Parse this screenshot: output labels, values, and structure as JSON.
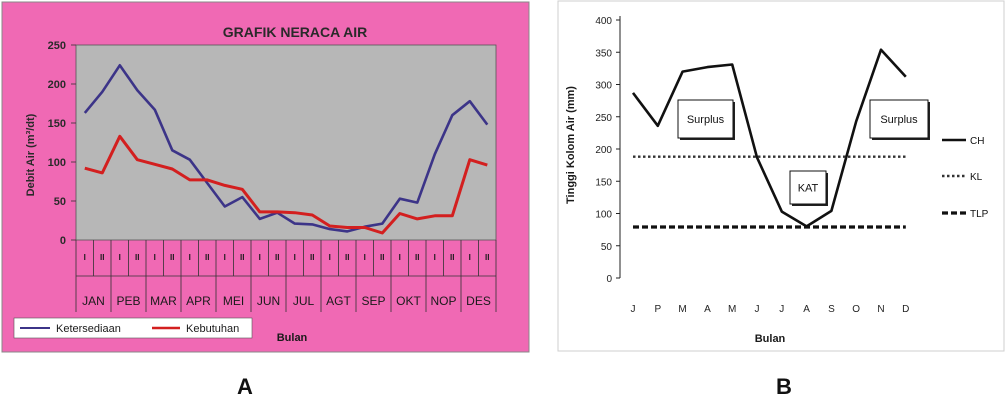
{
  "chart_data": [
    {
      "panel_label": "A",
      "type": "line",
      "title": "GRAFIK NERACA AIR",
      "ylabel": "Debit Air (m³/dt)",
      "xlabel": "Bulan",
      "ylim": [
        0,
        250
      ],
      "yticks": [
        0,
        50,
        100,
        150,
        200,
        250
      ],
      "months": [
        "JAN",
        "PEB",
        "MAR",
        "APR",
        "MEI",
        "JUN",
        "JUL",
        "AGT",
        "SEP",
        "OKT",
        "NOP",
        "DES"
      ],
      "periods": [
        "I",
        "II",
        "I",
        "II",
        "I",
        "II",
        "I",
        "II",
        "I",
        "II",
        "I",
        "II",
        "I",
        "II",
        "I",
        "II",
        "I",
        "II",
        "I",
        "II",
        "I",
        "II",
        "I",
        "II"
      ],
      "grid": false,
      "legend_position": "bottom-left",
      "colors": {
        "background": "#f069b4",
        "plot": "#b7b7b7",
        "ketersediaan": "#3c3488",
        "kebutuhan": "#d31f1f"
      },
      "series": [
        {
          "name": "Ketersediaan",
          "values": [
            163,
            190,
            224,
            192,
            167,
            115,
            103,
            73,
            43,
            55,
            27,
            35,
            21,
            20,
            14,
            11,
            17,
            21,
            53,
            48,
            110,
            160,
            178,
            148
          ]
        },
        {
          "name": "Kebutuhan",
          "values": [
            92,
            86,
            133,
            103,
            97,
            91,
            77,
            77,
            70,
            65,
            36,
            36,
            35,
            32,
            18,
            16,
            16,
            9,
            34,
            27,
            31,
            31,
            103,
            96
          ]
        }
      ]
    },
    {
      "panel_label": "B",
      "type": "line",
      "ylabel": "Tinggi Kolom Air (mm)",
      "xlabel": "Bulan",
      "ylim": [
        0,
        400
      ],
      "yticks": [
        0,
        50,
        100,
        150,
        200,
        250,
        300,
        350,
        400
      ],
      "categories": [
        "J",
        "P",
        "M",
        "A",
        "M",
        "J",
        "J",
        "A",
        "S",
        "O",
        "N",
        "D"
      ],
      "grid": false,
      "legend_position": "right",
      "series": [
        {
          "name": "CH",
          "values": [
            287,
            236,
            320,
            327,
            331,
            187,
            103,
            80,
            104,
            243,
            354,
            312
          ]
        },
        {
          "name": "KL",
          "values": [
            188,
            188,
            188,
            188,
            188,
            188,
            188,
            188,
            188,
            188,
            188,
            188
          ]
        },
        {
          "name": "TLP",
          "values": [
            79,
            79,
            79,
            79,
            79,
            79,
            79,
            79,
            79,
            79,
            79,
            79
          ]
        }
      ],
      "annotations": [
        "Surplus",
        "KAT",
        "Surplus"
      ]
    }
  ]
}
